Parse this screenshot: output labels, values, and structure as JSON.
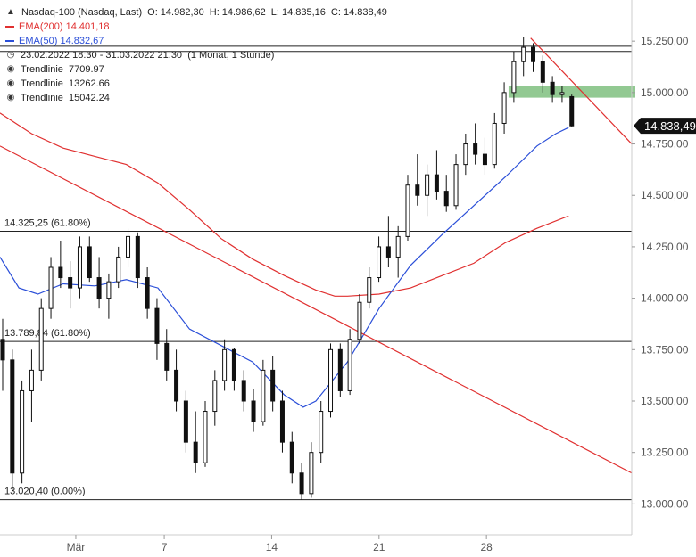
{
  "header": {
    "symbol": "Nasdaq-100 (Nasdaq, Last)",
    "open": "O: 14.982,30",
    "high": "H: 14.986,62",
    "low": "L: 14.835,16",
    "close": "C: 14.838,49"
  },
  "legend": [
    {
      "label": "EMA(200)",
      "value": "14.401,18",
      "color": "#e03030"
    },
    {
      "label": "EMA(50)",
      "value": "14.832,67",
      "color": "#2b4fd8"
    }
  ],
  "range_info": {
    "dates": "23.02.2022 18:30 - 31.03.2022 21:30",
    "period": "(1 Monat, 1 Stunde)"
  },
  "trendline_items": [
    {
      "label": "Trendlinie",
      "value": "7709.97"
    },
    {
      "label": "Trendlinie",
      "value": "13262.66"
    },
    {
      "label": "Trendlinie",
      "value": "15042.24"
    }
  ],
  "chart_data": {
    "type": "candlestick",
    "y_ticks": [
      "15.250,00",
      "15.000,00",
      "14.750,00",
      "14.500,00",
      "14.250,00",
      "14.000,00",
      "13.750,00",
      "13.500,00",
      "13.250,00",
      "13.000,00"
    ],
    "y_tick_values": [
      15250,
      15000,
      14750,
      14500,
      14250,
      14000,
      13750,
      13500,
      13250,
      13000
    ],
    "ylim": [
      12850,
      15450
    ],
    "x_ticks": [
      {
        "label": "Mär",
        "x": 0.12
      },
      {
        "label": "7",
        "x": 0.26
      },
      {
        "label": "14",
        "x": 0.43
      },
      {
        "label": "21",
        "x": 0.6
      },
      {
        "label": "28",
        "x": 0.77
      }
    ],
    "last_price": "14.838,49",
    "last_value": 14838.49,
    "horizontal_levels": [
      {
        "label": "14.325,25 (61.80%)",
        "value": 14325.25,
        "color": "#222222"
      },
      {
        "label": "13.789,84 (61.80%)",
        "value": 13789.84,
        "color": "#222222"
      },
      {
        "label": "13.020,40 (0.00%)",
        "value": 13020.4,
        "color": "#222222"
      },
      {
        "label": "",
        "value": 15225,
        "color": "#222222"
      },
      {
        "label": "",
        "value": 15200,
        "color": "#222222"
      }
    ],
    "resistance_zone": {
      "from": 14975,
      "to": 15030,
      "color": "#7fbf7f"
    },
    "trendlines": [
      {
        "points": [
          [
            0.0,
            14740
          ],
          [
            1.0,
            13150
          ]
        ],
        "color": "#e03030"
      },
      {
        "points": [
          [
            0.84,
            15265
          ],
          [
            1.0,
            14750
          ]
        ],
        "color": "#e03030"
      }
    ],
    "ema200": {
      "color": "#e03030",
      "points": [
        [
          0,
          14900
        ],
        [
          0.05,
          14800
        ],
        [
          0.1,
          14730
        ],
        [
          0.15,
          14690
        ],
        [
          0.2,
          14650
        ],
        [
          0.25,
          14560
        ],
        [
          0.3,
          14430
        ],
        [
          0.35,
          14290
        ],
        [
          0.4,
          14190
        ],
        [
          0.45,
          14110
        ],
        [
          0.5,
          14040
        ],
        [
          0.53,
          14010
        ],
        [
          0.55,
          14010
        ],
        [
          0.6,
          14020
        ],
        [
          0.65,
          14050
        ],
        [
          0.7,
          14110
        ],
        [
          0.75,
          14170
        ],
        [
          0.8,
          14270
        ],
        [
          0.85,
          14340
        ],
        [
          0.9,
          14400
        ]
      ]
    },
    "ema50": {
      "color": "#2b4fd8",
      "points": [
        [
          0,
          14200
        ],
        [
          0.03,
          14050
        ],
        [
          0.06,
          14020
        ],
        [
          0.1,
          14070
        ],
        [
          0.15,
          14060
        ],
        [
          0.2,
          14090
        ],
        [
          0.25,
          14050
        ],
        [
          0.3,
          13850
        ],
        [
          0.35,
          13770
        ],
        [
          0.4,
          13690
        ],
        [
          0.45,
          13530
        ],
        [
          0.48,
          13470
        ],
        [
          0.5,
          13500
        ],
        [
          0.55,
          13690
        ],
        [
          0.6,
          13950
        ],
        [
          0.65,
          14160
        ],
        [
          0.7,
          14310
        ],
        [
          0.75,
          14450
        ],
        [
          0.8,
          14590
        ],
        [
          0.85,
          14740
        ],
        [
          0.88,
          14800
        ],
        [
          0.9,
          14830
        ]
      ]
    },
    "candles": [
      [
        13800,
        13900,
        13550,
        13700
      ],
      [
        13700,
        13750,
        13060,
        13150
      ],
      [
        13150,
        13600,
        13100,
        13550
      ],
      [
        13550,
        13750,
        13400,
        13650
      ],
      [
        13650,
        14000,
        13600,
        13950
      ],
      [
        13950,
        14200,
        13900,
        14150
      ],
      [
        14150,
        14280,
        14050,
        14100
      ],
      [
        14100,
        14180,
        13950,
        14050
      ],
      [
        14050,
        14300,
        14000,
        14250
      ],
      [
        14250,
        14300,
        14080,
        14100
      ],
      [
        14100,
        14200,
        13950,
        14000
      ],
      [
        14000,
        14120,
        13900,
        14080
      ],
      [
        14080,
        14250,
        14050,
        14200
      ],
      [
        14200,
        14340,
        14150,
        14300
      ],
      [
        14300,
        14320,
        14050,
        14100
      ],
      [
        14100,
        14150,
        13900,
        13950
      ],
      [
        13950,
        14000,
        13700,
        13780
      ],
      [
        13780,
        13850,
        13600,
        13650
      ],
      [
        13650,
        13750,
        13450,
        13500
      ],
      [
        13500,
        13550,
        13250,
        13300
      ],
      [
        13300,
        13450,
        13150,
        13200
      ],
      [
        13200,
        13500,
        13180,
        13450
      ],
      [
        13450,
        13650,
        13380,
        13600
      ],
      [
        13600,
        13800,
        13550,
        13750
      ],
      [
        13750,
        13760,
        13550,
        13600
      ],
      [
        13600,
        13650,
        13450,
        13500
      ],
      [
        13500,
        13560,
        13350,
        13400
      ],
      [
        13400,
        13700,
        13380,
        13650
      ],
      [
        13650,
        13720,
        13450,
        13500
      ],
      [
        13500,
        13550,
        13250,
        13300
      ],
      [
        13300,
        13350,
        13100,
        13150
      ],
      [
        13150,
        13200,
        13020,
        13050
      ],
      [
        13050,
        13300,
        13030,
        13250
      ],
      [
        13250,
        13500,
        13200,
        13450
      ],
      [
        13450,
        13780,
        13420,
        13750
      ],
      [
        13750,
        13780,
        13520,
        13550
      ],
      [
        13550,
        13850,
        13530,
        13800
      ],
      [
        13800,
        14020,
        13780,
        13980
      ],
      [
        13980,
        14150,
        13950,
        14100
      ],
      [
        14100,
        14300,
        14080,
        14250
      ],
      [
        14250,
        14400,
        14150,
        14200
      ],
      [
        14200,
        14350,
        14100,
        14300
      ],
      [
        14300,
        14600,
        14280,
        14550
      ],
      [
        14550,
        14700,
        14450,
        14500
      ],
      [
        14500,
        14650,
        14400,
        14600
      ],
      [
        14600,
        14720,
        14480,
        14520
      ],
      [
        14520,
        14600,
        14420,
        14450
      ],
      [
        14450,
        14700,
        14430,
        14650
      ],
      [
        14650,
        14800,
        14600,
        14750
      ],
      [
        14750,
        14850,
        14650,
        14700
      ],
      [
        14700,
        14780,
        14600,
        14650
      ],
      [
        14650,
        14900,
        14630,
        14850
      ],
      [
        14850,
        15050,
        14800,
        15000
      ],
      [
        15000,
        15200,
        14950,
        15150
      ],
      [
        15150,
        15270,
        15080,
        15220
      ],
      [
        15220,
        15240,
        15100,
        15150
      ],
      [
        15150,
        15180,
        15000,
        15050
      ],
      [
        15050,
        15080,
        14950,
        14990
      ],
      [
        14990,
        15030,
        14950,
        15000
      ],
      [
        14980,
        14990,
        14835,
        14838
      ]
    ]
  }
}
